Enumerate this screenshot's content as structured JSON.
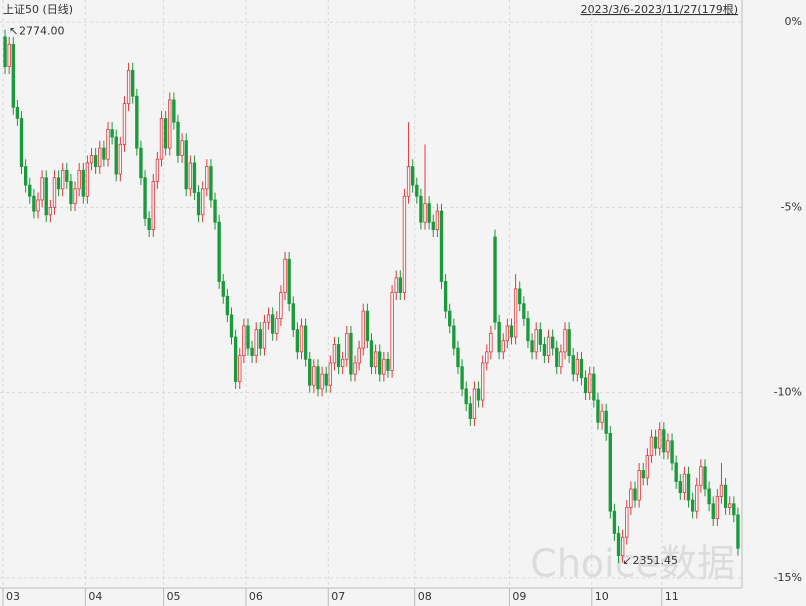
{
  "chart_data": {
    "type": "candlestick",
    "title": "上证50 (日线)",
    "range_label": "2023/3/6-2023/11/27(179根)",
    "watermark": "Choice数据",
    "annotations": [
      {
        "text": "2774.00",
        "at": "high"
      },
      {
        "text": "2351.45",
        "at": "low"
      }
    ],
    "up_color": "#e0393e",
    "down_color": "#1a9a3a",
    "grid": true,
    "xlim": [
      0,
      179
    ],
    "xticks": [
      {
        "value": 0,
        "label": "03"
      },
      {
        "value": 20,
        "label": "04"
      },
      {
        "value": 39,
        "label": "05"
      },
      {
        "value": 59,
        "label": "06"
      },
      {
        "value": 79,
        "label": "07"
      },
      {
        "value": 100,
        "label": "08"
      },
      {
        "value": 123,
        "label": "09"
      },
      {
        "value": 143,
        "label": "10"
      },
      {
        "value": 160,
        "label": "11"
      }
    ],
    "ylim": [
      -15.3,
      0.3
    ],
    "yticks": [
      {
        "value": 0,
        "label": "0%"
      },
      {
        "value": -5,
        "label": "-5%"
      },
      {
        "value": -10,
        "label": "-10%"
      },
      {
        "value": -15,
        "label": "-15%"
      }
    ],
    "ohlc": [
      [
        -0.4,
        -0.2,
        -1.4,
        -1.2
      ],
      [
        -1.2,
        -0.4,
        -1.4,
        -0.6
      ],
      [
        -0.6,
        -0.4,
        -2.5,
        -2.3
      ],
      [
        -2.3,
        -2.1,
        -2.8,
        -2.6
      ],
      [
        -2.6,
        -2.4,
        -4.1,
        -3.9
      ],
      [
        -3.9,
        -3.7,
        -4.6,
        -4.4
      ],
      [
        -4.4,
        -4.2,
        -4.9,
        -4.7
      ],
      [
        -4.7,
        -4.5,
        -5.3,
        -5.1
      ],
      [
        -5.1,
        -4.6,
        -5.3,
        -4.8
      ],
      [
        -4.8,
        -4.0,
        -5.0,
        -4.2
      ],
      [
        -4.2,
        -4.0,
        -5.4,
        -5.2
      ],
      [
        -5.2,
        -4.8,
        -5.4,
        -5.0
      ],
      [
        -5.0,
        -4.0,
        -5.2,
        -4.2
      ],
      [
        -4.2,
        -4.0,
        -4.7,
        -4.5
      ],
      [
        -4.5,
        -3.8,
        -4.7,
        -4.0
      ],
      [
        -4.0,
        -3.8,
        -4.5,
        -4.3
      ],
      [
        -4.3,
        -4.1,
        -5.1,
        -4.9
      ],
      [
        -4.9,
        -4.3,
        -5.1,
        -4.5
      ],
      [
        -4.5,
        -3.8,
        -4.7,
        -4.0
      ],
      [
        -4.0,
        -3.8,
        -4.9,
        -4.7
      ],
      [
        -4.7,
        -3.6,
        -4.9,
        -3.8
      ],
      [
        -3.8,
        -3.4,
        -4.0,
        -3.6
      ],
      [
        -3.6,
        -3.4,
        -4.1,
        -3.9
      ],
      [
        -3.9,
        -3.2,
        -4.1,
        -3.4
      ],
      [
        -3.4,
        -3.2,
        -3.9,
        -3.7
      ],
      [
        -3.7,
        -2.7,
        -3.9,
        -2.9
      ],
      [
        -2.9,
        -2.7,
        -3.3,
        -3.1
      ],
      [
        -3.1,
        -2.9,
        -4.3,
        -4.1
      ],
      [
        -4.1,
        -3.1,
        -4.3,
        -3.3
      ],
      [
        -3.3,
        -2.0,
        -3.5,
        -2.2
      ],
      [
        -2.2,
        -1.1,
        -2.4,
        -1.3
      ],
      [
        -1.3,
        -1.1,
        -2.2,
        -2.0
      ],
      [
        -2.0,
        -1.8,
        -3.6,
        -3.4
      ],
      [
        -3.4,
        -3.2,
        -4.4,
        -4.2
      ],
      [
        -4.2,
        -4.0,
        -5.5,
        -5.3
      ],
      [
        -5.3,
        -5.1,
        -5.8,
        -5.6
      ],
      [
        -5.6,
        -4.1,
        -5.8,
        -4.3
      ],
      [
        -4.3,
        -3.5,
        -4.5,
        -3.7
      ],
      [
        -3.7,
        -2.4,
        -3.9,
        -2.6
      ],
      [
        -2.6,
        -2.4,
        -3.6,
        -3.4
      ],
      [
        -3.4,
        -1.9,
        -3.6,
        -2.1
      ],
      [
        -2.1,
        -1.9,
        -2.9,
        -2.7
      ],
      [
        -2.7,
        -2.5,
        -3.8,
        -3.6
      ],
      [
        -3.6,
        -3.0,
        -3.8,
        -3.2
      ],
      [
        -3.2,
        -3.0,
        -4.7,
        -4.5
      ],
      [
        -4.5,
        -3.6,
        -4.7,
        -3.8
      ],
      [
        -3.8,
        -3.6,
        -4.8,
        -4.6
      ],
      [
        -4.6,
        -4.4,
        -5.4,
        -5.2
      ],
      [
        -5.2,
        -4.3,
        -5.4,
        -4.5
      ],
      [
        -4.5,
        -3.7,
        -4.7,
        -3.9
      ],
      [
        -3.9,
        -3.7,
        -5.0,
        -4.8
      ],
      [
        -4.8,
        -4.6,
        -5.6,
        -5.4
      ],
      [
        -5.4,
        -5.2,
        -7.2,
        -7.0
      ],
      [
        -7.0,
        -6.8,
        -7.6,
        -7.4
      ],
      [
        -7.4,
        -7.2,
        -8.1,
        -7.9
      ],
      [
        -7.9,
        -7.7,
        -8.7,
        -8.5
      ],
      [
        -8.5,
        -8.3,
        -9.9,
        -9.7
      ],
      [
        -9.7,
        -8.8,
        -9.9,
        -9.0
      ],
      [
        -9.0,
        -8.0,
        -9.2,
        -8.2
      ],
      [
        -8.2,
        -8.0,
        -9.0,
        -8.8
      ],
      [
        -8.8,
        -8.6,
        -9.2,
        -9.0
      ],
      [
        -9.0,
        -8.1,
        -9.2,
        -8.3
      ],
      [
        -8.3,
        -8.1,
        -9.0,
        -8.8
      ],
      [
        -8.8,
        -7.9,
        -9.0,
        -8.1
      ],
      [
        -8.1,
        -7.7,
        -8.3,
        -7.9
      ],
      [
        -7.9,
        -7.7,
        -8.6,
        -8.4
      ],
      [
        -8.4,
        -7.8,
        -8.6,
        -8.0
      ],
      [
        -8.0,
        -7.1,
        -8.2,
        -7.3
      ],
      [
        -7.3,
        -6.2,
        -7.5,
        -6.4
      ],
      [
        -6.4,
        -6.2,
        -7.8,
        -7.6
      ],
      [
        -7.6,
        -7.4,
        -8.5,
        -8.3
      ],
      [
        -8.3,
        -8.1,
        -9.1,
        -8.9
      ],
      [
        -8.9,
        -8.0,
        -9.1,
        -8.2
      ],
      [
        -8.2,
        -8.0,
        -9.3,
        -9.1
      ],
      [
        -9.1,
        -8.9,
        -10.0,
        -9.8
      ],
      [
        -9.8,
        -9.1,
        -10.0,
        -9.3
      ],
      [
        -9.3,
        -9.1,
        -10.1,
        -9.9
      ],
      [
        -9.9,
        -9.3,
        -10.1,
        -9.5
      ],
      [
        -9.5,
        -9.3,
        -10.0,
        -9.8
      ],
      [
        -9.8,
        -9.0,
        -10.0,
        -9.2
      ],
      [
        -9.2,
        -8.5,
        -9.4,
        -8.7
      ],
      [
        -8.7,
        -8.5,
        -9.5,
        -9.3
      ],
      [
        -9.3,
        -8.9,
        -9.5,
        -9.1
      ],
      [
        -9.1,
        -8.2,
        -9.3,
        -8.4
      ],
      [
        -8.4,
        -8.2,
        -9.7,
        -9.5
      ],
      [
        -9.5,
        -9.0,
        -9.7,
        -9.2
      ],
      [
        -9.2,
        -8.6,
        -9.4,
        -8.8
      ],
      [
        -8.8,
        -7.6,
        -9.0,
        -7.8
      ],
      [
        -7.8,
        -7.6,
        -8.8,
        -8.6
      ],
      [
        -8.6,
        -8.4,
        -9.5,
        -9.3
      ],
      [
        -9.3,
        -8.7,
        -9.5,
        -8.9
      ],
      [
        -8.9,
        -8.7,
        -9.7,
        -9.5
      ],
      [
        -9.5,
        -8.9,
        -9.7,
        -9.1
      ],
      [
        -9.1,
        -8.9,
        -9.6,
        -9.4
      ],
      [
        -9.4,
        -7.1,
        -9.6,
        -7.3
      ],
      [
        -7.3,
        -6.7,
        -7.5,
        -6.9
      ],
      [
        -6.9,
        -6.7,
        -7.5,
        -7.3
      ],
      [
        -7.3,
        -4.5,
        -7.5,
        -4.7
      ],
      [
        -4.7,
        -2.7,
        -4.9,
        -3.9
      ],
      [
        -3.9,
        -3.7,
        -4.6,
        -4.4
      ],
      [
        -4.4,
        -4.2,
        -4.9,
        -4.7
      ],
      [
        -4.7,
        -4.5,
        -5.6,
        -5.4
      ],
      [
        -5.4,
        -3.3,
        -5.6,
        -4.9
      ],
      [
        -4.9,
        -4.7,
        -5.6,
        -5.4
      ],
      [
        -5.4,
        -5.2,
        -5.8,
        -5.6
      ],
      [
        -5.6,
        -4.9,
        -5.8,
        -5.1
      ],
      [
        -5.1,
        -4.9,
        -7.2,
        -7.0
      ],
      [
        -7.0,
        -6.8,
        -8.0,
        -7.8
      ],
      [
        -7.8,
        -7.6,
        -8.4,
        -8.2
      ],
      [
        -8.2,
        -8.0,
        -9.0,
        -8.8
      ],
      [
        -8.8,
        -8.6,
        -9.5,
        -9.3
      ],
      [
        -9.3,
        -9.1,
        -10.1,
        -9.9
      ],
      [
        -9.9,
        -9.7,
        -10.5,
        -10.3
      ],
      [
        -10.3,
        -10.1,
        -10.9,
        -10.7
      ],
      [
        -10.7,
        -9.7,
        -10.9,
        -9.9
      ],
      [
        -9.9,
        -9.7,
        -10.4,
        -10.2
      ],
      [
        -10.2,
        -9.0,
        -10.4,
        -9.2
      ],
      [
        -9.2,
        -8.7,
        -9.4,
        -8.9
      ],
      [
        -8.9,
        -8.2,
        -9.1,
        -8.4
      ],
      [
        -5.8,
        -5.6,
        -8.3,
        -8.1
      ],
      [
        -8.1,
        -7.9,
        -9.1,
        -8.9
      ],
      [
        -8.9,
        -8.4,
        -9.1,
        -8.6
      ],
      [
        -8.6,
        -8.0,
        -8.8,
        -8.2
      ],
      [
        -8.2,
        -8.0,
        -8.7,
        -8.5
      ],
      [
        -8.5,
        -6.8,
        -8.7,
        -7.2
      ],
      [
        -7.2,
        -7.0,
        -7.8,
        -7.6
      ],
      [
        -7.6,
        -7.4,
        -8.2,
        -8.0
      ],
      [
        -8.0,
        -7.8,
        -8.8,
        -8.6
      ],
      [
        -8.6,
        -8.4,
        -9.1,
        -8.9
      ],
      [
        -8.9,
        -8.1,
        -9.1,
        -8.3
      ],
      [
        -8.3,
        -8.1,
        -8.9,
        -8.7
      ],
      [
        -8.7,
        -8.5,
        -9.2,
        -9.0
      ],
      [
        -9.0,
        -8.3,
        -9.2,
        -8.5
      ],
      [
        -8.5,
        -8.3,
        -9.0,
        -8.8
      ],
      [
        -8.8,
        -8.6,
        -9.5,
        -9.3
      ],
      [
        -9.3,
        -8.7,
        -9.5,
        -8.9
      ],
      [
        -8.9,
        -8.1,
        -9.1,
        -8.3
      ],
      [
        -8.3,
        -8.1,
        -9.2,
        -9.0
      ],
      [
        -9.0,
        -8.8,
        -9.7,
        -9.5
      ],
      [
        -9.5,
        -8.9,
        -9.7,
        -9.1
      ],
      [
        -9.1,
        -8.9,
        -9.8,
        -9.6
      ],
      [
        -9.6,
        -9.4,
        -10.2,
        -10.0
      ],
      [
        -10.0,
        -9.3,
        -10.2,
        -9.5
      ],
      [
        -9.5,
        -9.3,
        -10.4,
        -10.2
      ],
      [
        -10.2,
        -10.0,
        -11.0,
        -10.8
      ],
      [
        -10.8,
        -10.3,
        -11.0,
        -10.5
      ],
      [
        -10.5,
        -10.3,
        -11.3,
        -11.1
      ],
      [
        -11.1,
        -10.9,
        -13.4,
        -13.2
      ],
      [
        -13.2,
        -13.0,
        -14.0,
        -13.8
      ],
      [
        -13.8,
        -13.6,
        -14.6,
        -14.4
      ],
      [
        -14.4,
        -13.7,
        -14.6,
        -13.9
      ],
      [
        -13.9,
        -12.9,
        -14.1,
        -13.1
      ],
      [
        -13.1,
        -12.4,
        -13.3,
        -12.6
      ],
      [
        -12.6,
        -12.4,
        -13.1,
        -12.9
      ],
      [
        -12.9,
        -11.9,
        -13.1,
        -12.1
      ],
      [
        -12.1,
        -11.9,
        -12.5,
        -12.3
      ],
      [
        -12.3,
        -11.5,
        -12.5,
        -11.7
      ],
      [
        -11.7,
        -11.0,
        -11.9,
        -11.2
      ],
      [
        -11.2,
        -11.0,
        -11.7,
        -11.5
      ],
      [
        -11.5,
        -10.8,
        -11.7,
        -11.0
      ],
      [
        -11.0,
        -10.8,
        -11.8,
        -11.6
      ],
      [
        -11.6,
        -11.1,
        -11.8,
        -11.3
      ],
      [
        -11.3,
        -11.1,
        -12.1,
        -11.9
      ],
      [
        -11.9,
        -11.7,
        -12.6,
        -12.4
      ],
      [
        -12.4,
        -12.2,
        -12.9,
        -12.7
      ],
      [
        -12.7,
        -12.0,
        -12.9,
        -12.2
      ],
      [
        -12.2,
        -12.0,
        -13.1,
        -12.9
      ],
      [
        -12.9,
        -12.7,
        -13.4,
        -13.2
      ],
      [
        -13.2,
        -12.3,
        -13.4,
        -12.5
      ],
      [
        -12.5,
        -11.8,
        -12.7,
        -12.0
      ],
      [
        -12.0,
        -11.8,
        -12.8,
        -12.6
      ],
      [
        -12.6,
        -12.4,
        -13.2,
        -13.0
      ],
      [
        -13.0,
        -12.8,
        -13.6,
        -13.4
      ],
      [
        -13.4,
        -12.6,
        -13.6,
        -12.8
      ],
      [
        -12.8,
        -11.9,
        -13.0,
        -12.5
      ],
      [
        -12.5,
        -12.3,
        -13.3,
        -13.1
      ],
      [
        -13.1,
        -12.8,
        -13.3,
        -13.0
      ],
      [
        -13.0,
        -12.8,
        -13.5,
        -13.3
      ],
      [
        -13.3,
        -13.1,
        -14.4,
        -14.2
      ]
    ]
  }
}
